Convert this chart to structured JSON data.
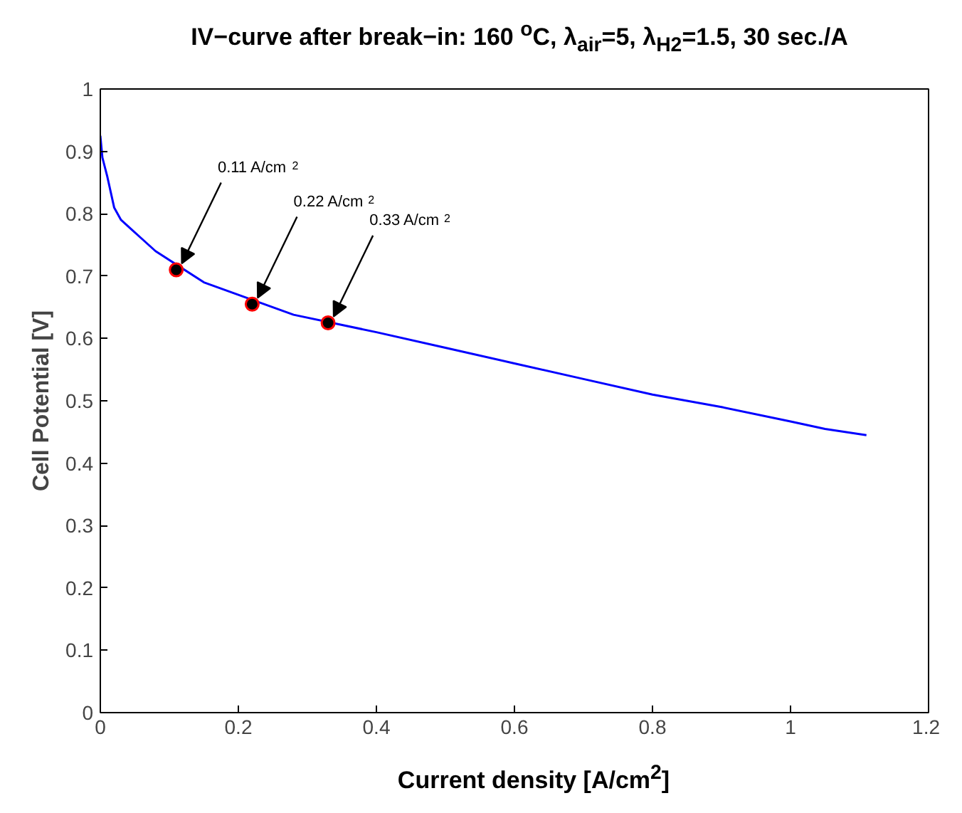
{
  "chart_data": {
    "type": "line",
    "title": "IV−curve after break−in: 160 $^{o}$C, λ$_{air}$=5, λ$_{H2}$=1.5, 30 sec./A",
    "xlabel": "Current density [A/cm$^{2}$]",
    "ylabel": "Cell Potential [V]",
    "xlim": [
      0,
      1.2
    ],
    "ylim": [
      0,
      1
    ],
    "xticks": [
      0,
      0.2,
      0.4,
      0.6,
      0.8,
      1,
      1.2
    ],
    "yticks": [
      0,
      0.1,
      0.2,
      0.3,
      0.4,
      0.5,
      0.6,
      0.7,
      0.8,
      0.9,
      1
    ],
    "series": [
      {
        "color": "#0000ff",
        "x": [
          0,
          0.003,
          0.01,
          0.02,
          0.03,
          0.045,
          0.06,
          0.08,
          0.15,
          0.28,
          0.4,
          0.5,
          0.6,
          0.7,
          0.8,
          0.9,
          1.0,
          1.05,
          1.11
        ],
        "values": [
          0.925,
          0.89,
          0.86,
          0.81,
          0.79,
          0.775,
          0.76,
          0.74,
          0.69,
          0.638,
          0.61,
          0.585,
          0.56,
          0.535,
          0.51,
          0.49,
          0.467,
          0.455,
          0.445
        ]
      },
      {
        "type": "scatter",
        "color": "#000000",
        "marker": "circle",
        "x": [
          0.11,
          0.22,
          0.33
        ],
        "values": [
          0.71,
          0.655,
          0.625
        ]
      }
    ],
    "annotations": [
      {
        "text": "0.11 A/cm$^{2}$",
        "x": 0.11,
        "y": 0.71
      },
      {
        "text": "0.22 A/cm$^{2}$",
        "x": 0.22,
        "y": 0.655
      },
      {
        "text": "0.33 A/cm$^{2}$",
        "x": 0.33,
        "y": 0.625
      }
    ]
  }
}
